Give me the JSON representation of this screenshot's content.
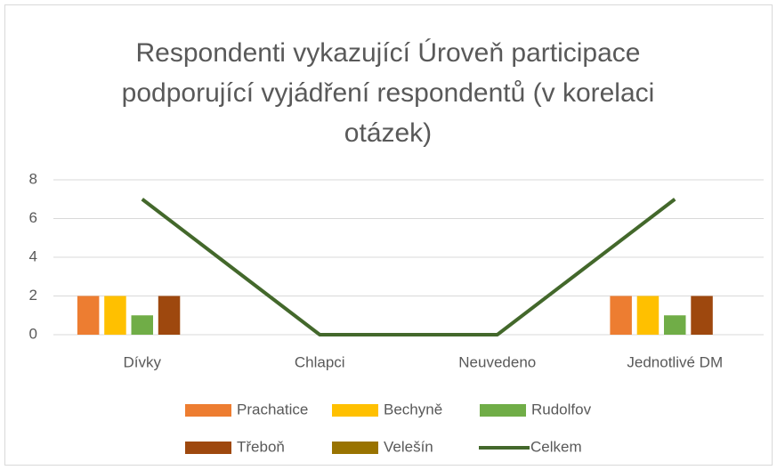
{
  "chart_data": {
    "type": "bar",
    "title": "Respondenti vykazující Úroveň participace podporující vyjádření respondentů (v korelaci otázek)",
    "categories": [
      "Dívky",
      "Chlapci",
      "Neuvedeno",
      "Jednotlivé DM"
    ],
    "series": [
      {
        "name": "Prachatice",
        "color": "#ED7D31",
        "type": "bar",
        "values": [
          2,
          0,
          0,
          2
        ]
      },
      {
        "name": "Bechyně",
        "color": "#FFC000",
        "type": "bar",
        "values": [
          2,
          0,
          0,
          2
        ]
      },
      {
        "name": "Rudolfov",
        "color": "#70AD47",
        "type": "bar",
        "values": [
          1,
          0,
          0,
          1
        ]
      },
      {
        "name": "Třeboň",
        "color": "#9E480E",
        "type": "bar",
        "values": [
          2,
          0,
          0,
          2
        ]
      },
      {
        "name": "Velešín",
        "color": "#997300",
        "type": "bar",
        "values": [
          0,
          0,
          0,
          0
        ]
      },
      {
        "name": "Celkem",
        "color": "#43682B",
        "type": "line",
        "values": [
          7,
          0,
          0,
          7
        ]
      }
    ],
    "ylim": [
      0,
      8
    ],
    "yticks": [
      0,
      2,
      4,
      6,
      8
    ],
    "grid": true,
    "legend": "bottom"
  }
}
